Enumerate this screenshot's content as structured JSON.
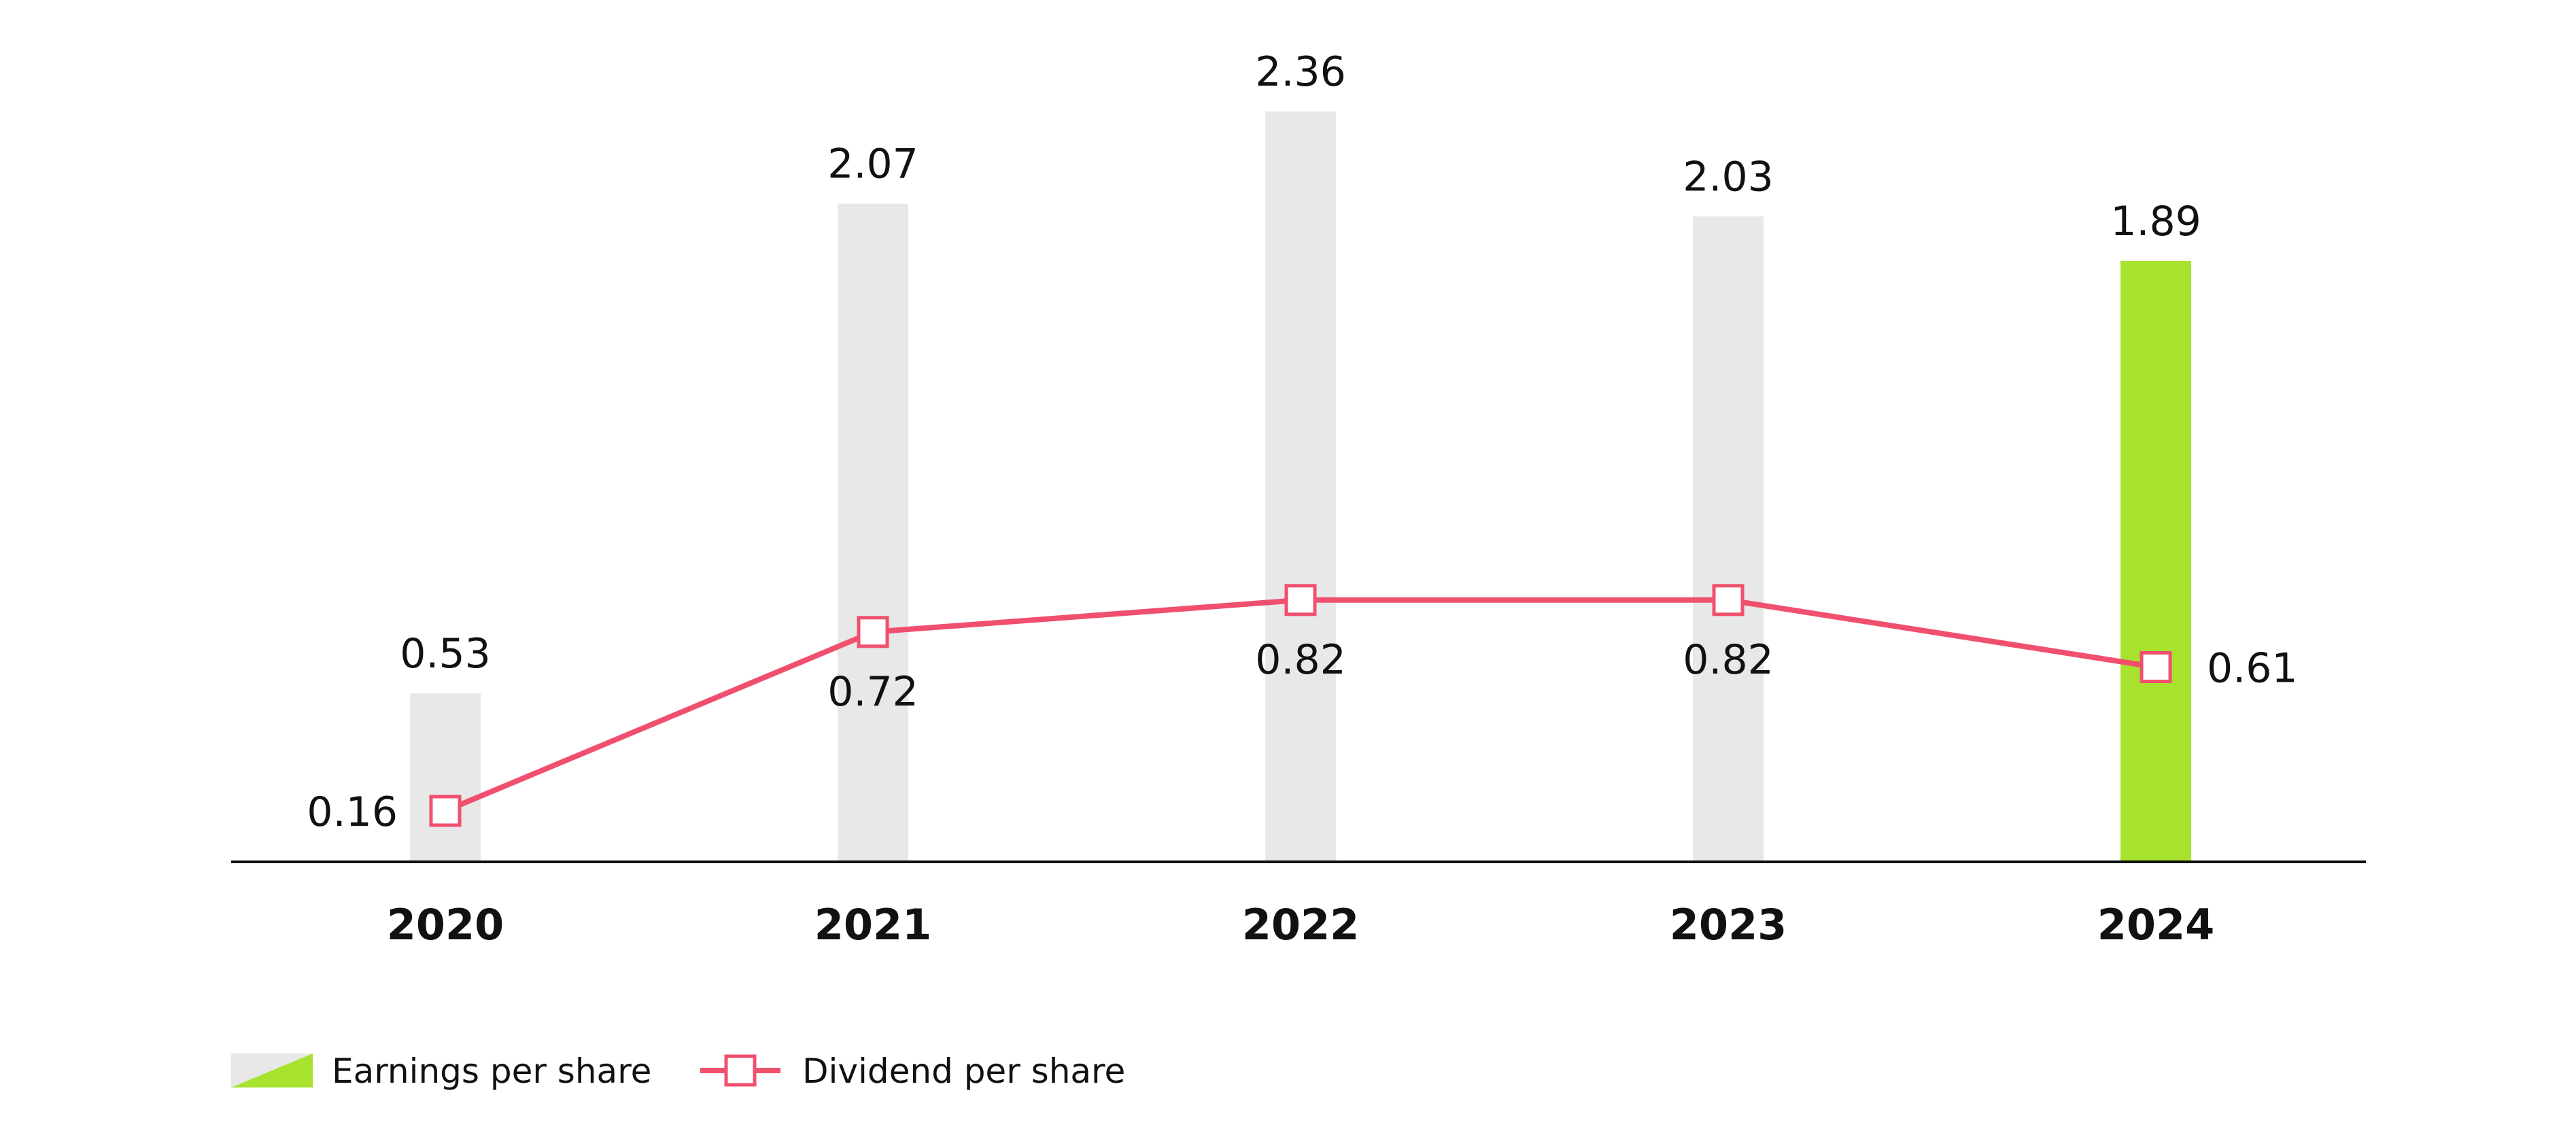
{
  "chart_data": {
    "type": "bar",
    "categories": [
      "2020",
      "2021",
      "2022",
      "2023",
      "2024"
    ],
    "series": [
      {
        "name": "Earnings per share",
        "kind": "bar",
        "values": [
          0.53,
          2.07,
          2.36,
          2.03,
          1.89
        ],
        "value_labels": [
          "0.53",
          "2.07",
          "2.36",
          "2.03",
          "1.89"
        ],
        "color": "#e8e8e8",
        "highlight_color": "#a6e22e",
        "highlight_category": "2024"
      },
      {
        "name": "Dividend per share",
        "kind": "line",
        "values": [
          0.16,
          0.72,
          0.82,
          0.82,
          0.61
        ],
        "value_labels": [
          "0.16",
          "0.72",
          "0.82",
          "0.82",
          "0.61"
        ],
        "color": "#f0506e"
      }
    ],
    "ylim": [
      0,
      2.36
    ],
    "grid": false,
    "legend": "bottom-left",
    "axis_color": "#111111"
  }
}
